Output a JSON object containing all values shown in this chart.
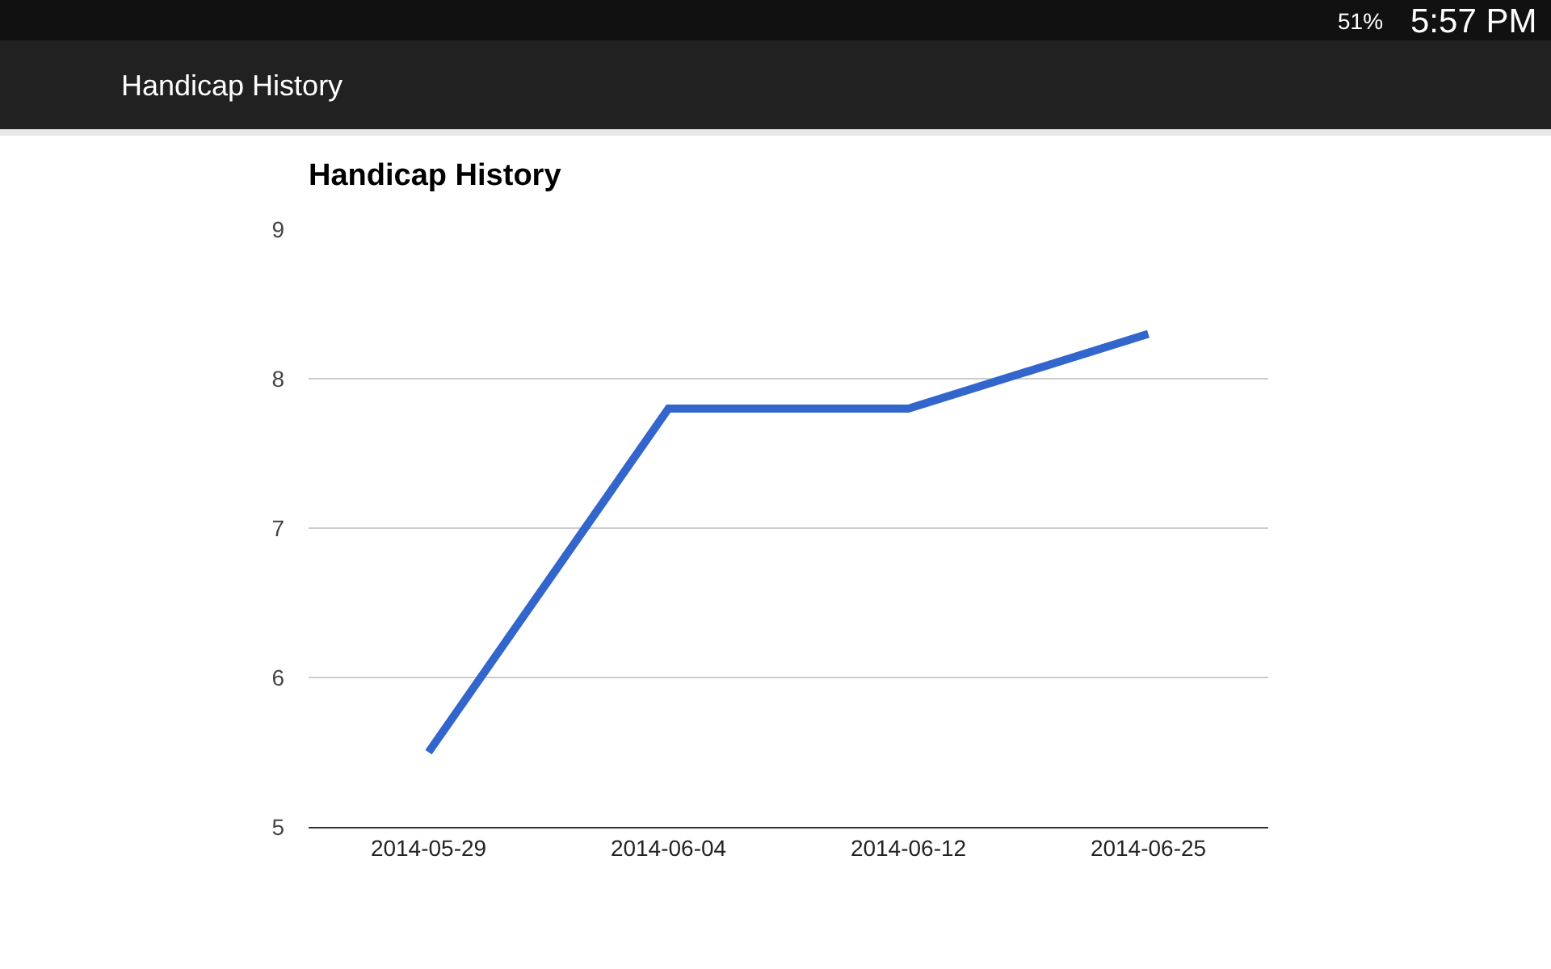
{
  "chart_data": {
    "type": "line",
    "title": "Handicap History",
    "categories": [
      "2014-05-29",
      "2014-06-04",
      "2014-06-12",
      "2014-06-25"
    ],
    "values": [
      5.5,
      7.8,
      7.8,
      8.3
    ],
    "color": "#3366cc",
    "ylim": [
      5,
      9
    ],
    "yticks": [
      5,
      6,
      7,
      8,
      9
    ],
    "grid": "y",
    "marker": "none",
    "line_style": "solid",
    "annotations": [
      "Handicap History",
      "51%",
      "5:57 PM"
    ]
  }
}
